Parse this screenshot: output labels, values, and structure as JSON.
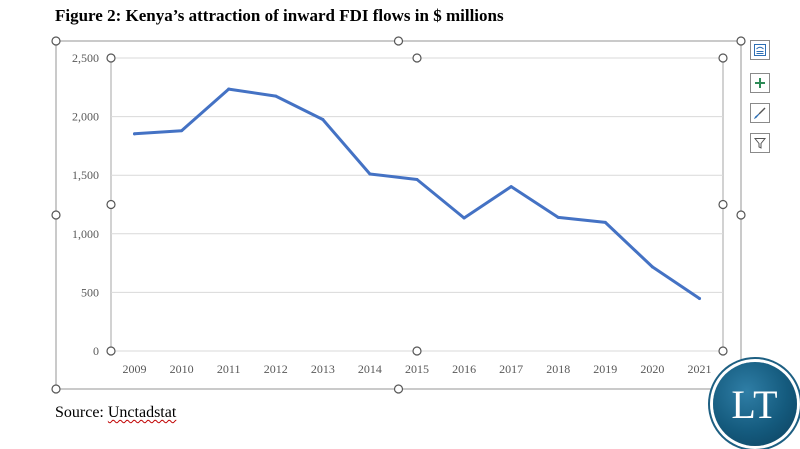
{
  "figure": {
    "title": "Figure 2: Kenya’s attraction of inward FDI flows in $ millions",
    "source_prefix": "Source: ",
    "source_name": "Unctadstat"
  },
  "chart_data": {
    "type": "line",
    "title": "",
    "xlabel": "",
    "ylabel": "",
    "categories": [
      "2009",
      "2010",
      "2011",
      "2012",
      "2013",
      "2014",
      "2015",
      "2016",
      "2017",
      "2018",
      "2019",
      "2020",
      "2021"
    ],
    "series": [
      {
        "values": [
          1853,
          1880,
          2235,
          2175,
          1975,
          1510,
          1463,
          1135,
          1403,
          1140,
          1097,
          718,
          448
        ]
      }
    ],
    "ylim": [
      0,
      2500
    ],
    "yticks": [
      0,
      500,
      1000,
      1500,
      2000,
      2500
    ],
    "ytick_labels": [
      "0",
      "500",
      "1,000",
      "1,500",
      "2,000",
      "2,500"
    ],
    "grid": true,
    "line_color": "#4472c4"
  },
  "toolbar": {
    "buttons": [
      {
        "icon": "layout-options-icon"
      },
      {
        "icon": "chart-elements-plus-icon"
      },
      {
        "icon": "chart-styles-brush-icon"
      },
      {
        "icon": "chart-filters-funnel-icon"
      }
    ]
  },
  "logo": {
    "text": "LT"
  }
}
